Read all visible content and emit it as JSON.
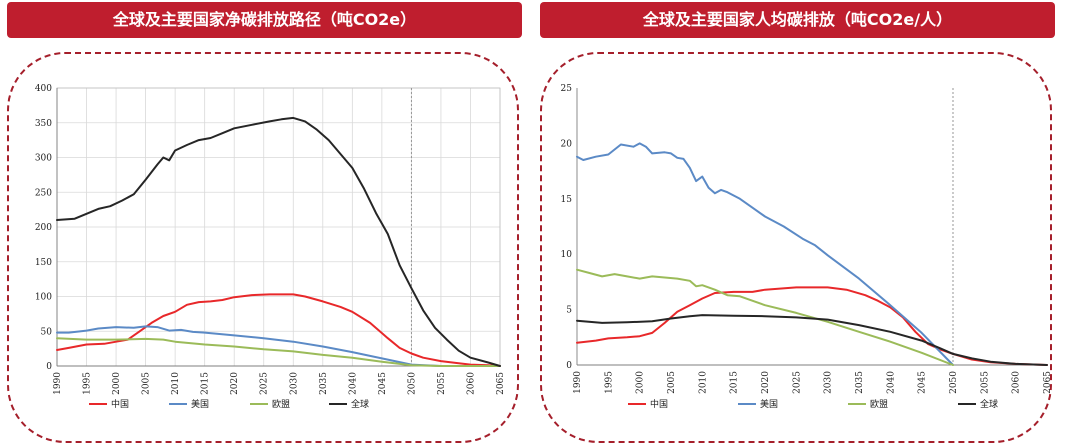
{
  "chart_data": [
    {
      "type": "line",
      "title": "全球及主要国家净碳排放路径（吨CO2e）",
      "xlabel": "",
      "ylabel": "",
      "xlim": [
        1990,
        2065
      ],
      "ylim": [
        0,
        400
      ],
      "y_ticks": [
        0,
        50,
        100,
        150,
        200,
        250,
        300,
        350,
        400
      ],
      "x_ticks": [
        1990,
        1995,
        2000,
        2005,
        2010,
        2015,
        2020,
        2025,
        2030,
        2035,
        2040,
        2045,
        2050,
        2055,
        2060,
        2065
      ],
      "reference_line_x": 2050,
      "grid": true,
      "legend_position": "bottom",
      "series": [
        {
          "name": "中国",
          "color": "#e8282a",
          "points": [
            [
              1990,
              23
            ],
            [
              1992,
              26
            ],
            [
              1995,
              31
            ],
            [
              1998,
              32
            ],
            [
              2000,
              35
            ],
            [
              2002,
              38
            ],
            [
              2004,
              50
            ],
            [
              2006,
              62
            ],
            [
              2008,
              72
            ],
            [
              2010,
              78
            ],
            [
              2012,
              88
            ],
            [
              2014,
              92
            ],
            [
              2016,
              93
            ],
            [
              2018,
              95
            ],
            [
              2020,
              99
            ],
            [
              2023,
              102
            ],
            [
              2026,
              103
            ],
            [
              2030,
              103
            ],
            [
              2032,
              100
            ],
            [
              2035,
              93
            ],
            [
              2038,
              85
            ],
            [
              2040,
              78
            ],
            [
              2043,
              62
            ],
            [
              2046,
              40
            ],
            [
              2048,
              26
            ],
            [
              2050,
              18
            ],
            [
              2052,
              12
            ],
            [
              2055,
              7
            ],
            [
              2058,
              4
            ],
            [
              2060,
              2
            ],
            [
              2063,
              1
            ],
            [
              2065,
              0
            ]
          ]
        },
        {
          "name": "美国",
          "color": "#5b8ac6",
          "points": [
            [
              1990,
              48
            ],
            [
              1992,
              48
            ],
            [
              1995,
              51
            ],
            [
              1997,
              54
            ],
            [
              2000,
              56
            ],
            [
              2003,
              55
            ],
            [
              2005,
              57
            ],
            [
              2007,
              56
            ],
            [
              2009,
              51
            ],
            [
              2011,
              52
            ],
            [
              2013,
              49
            ],
            [
              2015,
              48
            ],
            [
              2020,
              44
            ],
            [
              2025,
              40
            ],
            [
              2030,
              35
            ],
            [
              2035,
              28
            ],
            [
              2040,
              20
            ],
            [
              2045,
              11
            ],
            [
              2050,
              2
            ],
            [
              2055,
              0
            ],
            [
              2065,
              0
            ]
          ]
        },
        {
          "name": "欧盟",
          "color": "#9bbb59",
          "points": [
            [
              1990,
              40
            ],
            [
              1995,
              38
            ],
            [
              2000,
              38
            ],
            [
              2005,
              39
            ],
            [
              2008,
              38
            ],
            [
              2010,
              35
            ],
            [
              2015,
              31
            ],
            [
              2020,
              28
            ],
            [
              2025,
              24
            ],
            [
              2030,
              21
            ],
            [
              2035,
              16
            ],
            [
              2040,
              12
            ],
            [
              2045,
              6
            ],
            [
              2050,
              1
            ],
            [
              2055,
              0
            ],
            [
              2065,
              0
            ]
          ]
        },
        {
          "name": "全球",
          "color": "#262626",
          "points": [
            [
              1990,
              210
            ],
            [
              1993,
              212
            ],
            [
              1995,
              219
            ],
            [
              1997,
              226
            ],
            [
              1999,
              230
            ],
            [
              2001,
              238
            ],
            [
              2003,
              247
            ],
            [
              2005,
              268
            ],
            [
              2007,
              290
            ],
            [
              2008,
              300
            ],
            [
              2009,
              296
            ],
            [
              2010,
              310
            ],
            [
              2012,
              318
            ],
            [
              2014,
              325
            ],
            [
              2016,
              328
            ],
            [
              2018,
              335
            ],
            [
              2020,
              342
            ],
            [
              2023,
              347
            ],
            [
              2026,
              352
            ],
            [
              2028,
              355
            ],
            [
              2030,
              357
            ],
            [
              2032,
              352
            ],
            [
              2034,
              340
            ],
            [
              2036,
              325
            ],
            [
              2038,
              305
            ],
            [
              2040,
              285
            ],
            [
              2042,
              255
            ],
            [
              2044,
              220
            ],
            [
              2046,
              190
            ],
            [
              2048,
              145
            ],
            [
              2050,
              112
            ],
            [
              2052,
              80
            ],
            [
              2054,
              55
            ],
            [
              2056,
              38
            ],
            [
              2058,
              22
            ],
            [
              2060,
              12
            ],
            [
              2063,
              5
            ],
            [
              2065,
              0
            ]
          ]
        }
      ]
    },
    {
      "type": "line",
      "title": "全球及主要国家人均碳排放（吨CO2e/人）",
      "xlabel": "",
      "ylabel": "",
      "xlim": [
        1990,
        2065
      ],
      "ylim": [
        0,
        25
      ],
      "y_ticks": [
        0,
        5,
        10,
        15,
        20,
        25
      ],
      "x_ticks": [
        1990,
        1995,
        2000,
        2005,
        2010,
        2015,
        2020,
        2025,
        2030,
        2035,
        2040,
        2045,
        2050,
        2055,
        2060,
        2065
      ],
      "reference_line_x": 2050,
      "grid": false,
      "legend_position": "bottom",
      "series": [
        {
          "name": "中国",
          "color": "#e8282a",
          "points": [
            [
              1990,
              2.0
            ],
            [
              1993,
              2.2
            ],
            [
              1995,
              2.4
            ],
            [
              1998,
              2.5
            ],
            [
              2000,
              2.6
            ],
            [
              2002,
              2.9
            ],
            [
              2004,
              3.8
            ],
            [
              2006,
              4.8
            ],
            [
              2008,
              5.4
            ],
            [
              2010,
              6.0
            ],
            [
              2012,
              6.5
            ],
            [
              2015,
              6.6
            ],
            [
              2018,
              6.6
            ],
            [
              2020,
              6.8
            ],
            [
              2025,
              7.0
            ],
            [
              2030,
              7.0
            ],
            [
              2033,
              6.8
            ],
            [
              2036,
              6.3
            ],
            [
              2038,
              5.8
            ],
            [
              2040,
              5.2
            ],
            [
              2042,
              4.3
            ],
            [
              2044,
              3.0
            ],
            [
              2046,
              1.9
            ],
            [
              2048,
              1.4
            ],
            [
              2050,
              1.0
            ],
            [
              2053,
              0.5
            ],
            [
              2056,
              0.25
            ],
            [
              2060,
              0.1
            ],
            [
              2065,
              0.0
            ]
          ]
        },
        {
          "name": "美国",
          "color": "#5b8ac6",
          "points": [
            [
              1990,
              18.8
            ],
            [
              1991,
              18.5
            ],
            [
              1993,
              18.8
            ],
            [
              1995,
              19.0
            ],
            [
              1997,
              19.9
            ],
            [
              1999,
              19.7
            ],
            [
              2000,
              20.0
            ],
            [
              2001,
              19.7
            ],
            [
              2002,
              19.1
            ],
            [
              2004,
              19.2
            ],
            [
              2005,
              19.1
            ],
            [
              2006,
              18.7
            ],
            [
              2007,
              18.6
            ],
            [
              2008,
              17.8
            ],
            [
              2009,
              16.6
            ],
            [
              2010,
              17.0
            ],
            [
              2011,
              16.0
            ],
            [
              2012,
              15.5
            ],
            [
              2013,
              15.8
            ],
            [
              2014,
              15.6
            ],
            [
              2016,
              15.0
            ],
            [
              2018,
              14.2
            ],
            [
              2020,
              13.4
            ],
            [
              2023,
              12.5
            ],
            [
              2026,
              11.4
            ],
            [
              2028,
              10.8
            ],
            [
              2030,
              9.9
            ],
            [
              2035,
              7.8
            ],
            [
              2040,
              5.4
            ],
            [
              2045,
              2.9
            ],
            [
              2050,
              0.0
            ]
          ]
        },
        {
          "name": "欧盟",
          "color": "#9bbb59",
          "points": [
            [
              1990,
              8.6
            ],
            [
              1992,
              8.3
            ],
            [
              1994,
              8.0
            ],
            [
              1996,
              8.2
            ],
            [
              1998,
              8.0
            ],
            [
              2000,
              7.8
            ],
            [
              2002,
              8.0
            ],
            [
              2004,
              7.9
            ],
            [
              2006,
              7.8
            ],
            [
              2008,
              7.6
            ],
            [
              2009,
              7.1
            ],
            [
              2010,
              7.2
            ],
            [
              2012,
              6.8
            ],
            [
              2014,
              6.3
            ],
            [
              2016,
              6.2
            ],
            [
              2020,
              5.4
            ],
            [
              2025,
              4.7
            ],
            [
              2030,
              3.9
            ],
            [
              2035,
              3.0
            ],
            [
              2040,
              2.1
            ],
            [
              2045,
              1.1
            ],
            [
              2050,
              0.0
            ]
          ]
        },
        {
          "name": "全球",
          "color": "#262626",
          "points": [
            [
              1990,
              4.0
            ],
            [
              1994,
              3.8
            ],
            [
              1998,
              3.85
            ],
            [
              2002,
              3.95
            ],
            [
              2005,
              4.2
            ],
            [
              2008,
              4.4
            ],
            [
              2010,
              4.5
            ],
            [
              2015,
              4.45
            ],
            [
              2020,
              4.4
            ],
            [
              2025,
              4.3
            ],
            [
              2030,
              4.1
            ],
            [
              2035,
              3.6
            ],
            [
              2040,
              3.0
            ],
            [
              2045,
              2.2
            ],
            [
              2048,
              1.5
            ],
            [
              2050,
              1.0
            ],
            [
              2053,
              0.6
            ],
            [
              2056,
              0.3
            ],
            [
              2060,
              0.1
            ],
            [
              2065,
              0.0
            ]
          ]
        }
      ]
    }
  ]
}
